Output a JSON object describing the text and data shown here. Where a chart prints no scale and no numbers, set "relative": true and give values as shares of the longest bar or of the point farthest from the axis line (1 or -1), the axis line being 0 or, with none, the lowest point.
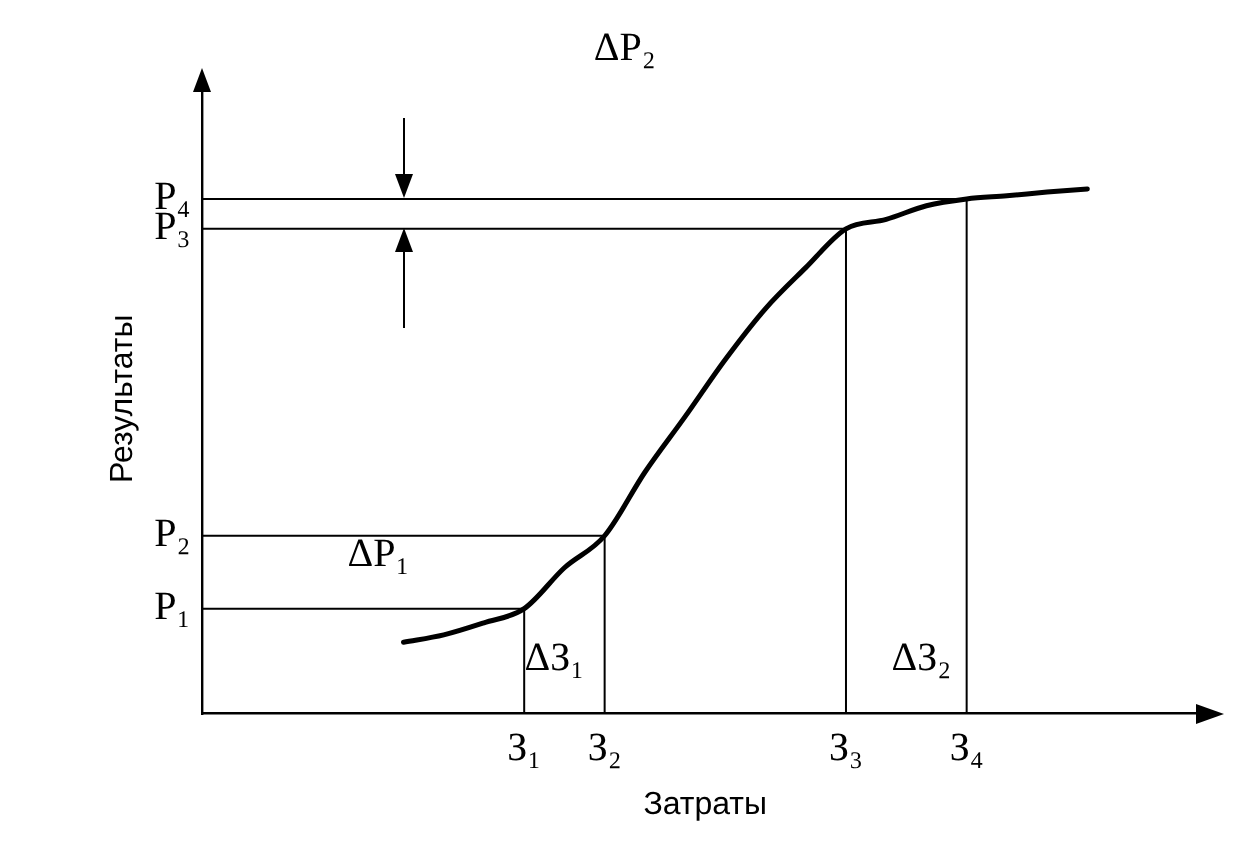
{
  "chart_data": {
    "type": "line",
    "xlabel": "Затраты",
    "ylabel": "Результаты",
    "relative": true,
    "categories": [
      null,
      null,
      null,
      null,
      null,
      null,
      null,
      null,
      "З₁",
      null,
      "З₂",
      null,
      null,
      null,
      null,
      null,
      "З₃",
      null,
      null,
      "З₄",
      null,
      null,
      null,
      null,
      null,
      null
    ],
    "series": [
      {
        "color": "#000000",
        "values": [
          null,
          null,
          null,
          null,
          null,
          0.136,
          0.15,
          0.173,
          0.2,
          0.278,
          0.339,
          0.46,
          0.566,
          0.675,
          0.772,
          0.85,
          0.924,
          0.942,
          0.968,
          0.981,
          0.987,
          0.994,
          1,
          null,
          null,
          null
        ]
      }
    ],
    "annotations": [
      "Р₁",
      "Р₂",
      "Р₃",
      "Р₄",
      "ΔР₁",
      "ΔЗ₁",
      "ΔЗ₂",
      "ΔР₂"
    ],
    "marker": "none",
    "line_style": "solid",
    "grid": false,
    "legend": false
  }
}
